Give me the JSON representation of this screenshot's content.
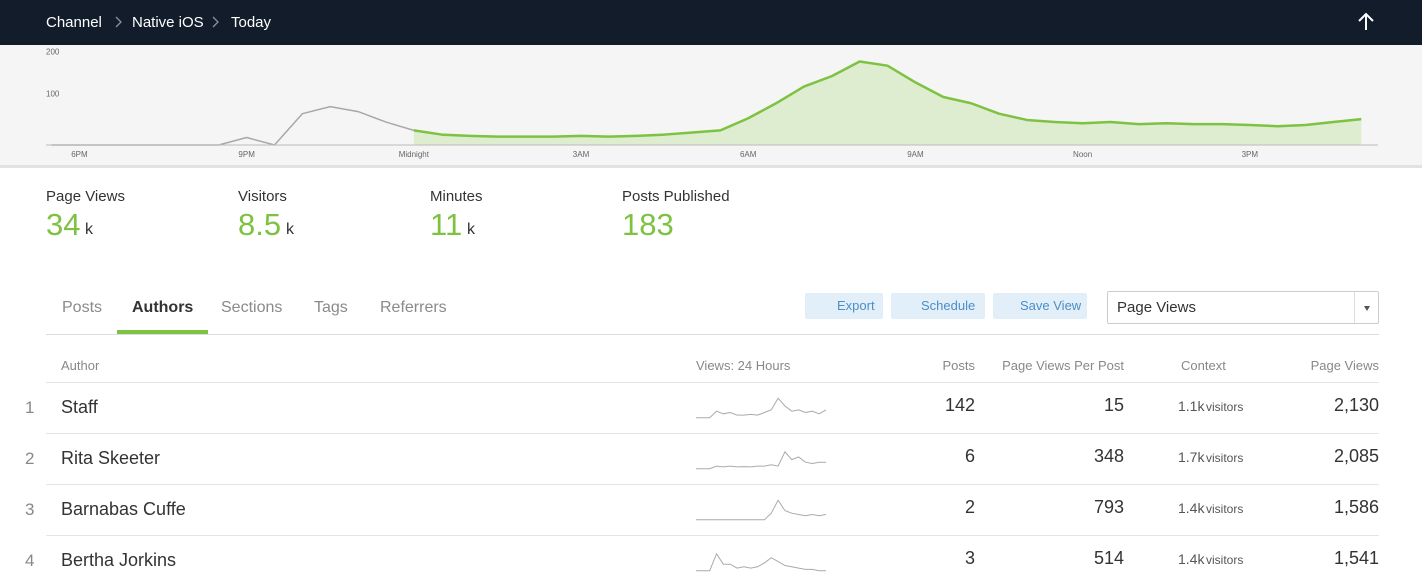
{
  "breadcrumb": [
    "Channel",
    "Native iOS",
    "Today"
  ],
  "chart": {
    "type": "area",
    "x": [
      -0.5,
      0,
      0.5,
      1,
      1.5,
      2,
      2.5,
      3,
      3.5,
      4,
      4.5,
      5,
      5.5,
      6,
      6.5,
      7,
      7.5,
      8,
      8.5,
      9,
      9.5,
      10,
      10.5,
      11,
      11.5,
      12,
      12.5,
      13,
      13.5,
      14,
      14.5,
      15,
      15.5,
      16,
      16.5,
      17,
      17.5,
      18,
      18.5,
      19,
      19.5,
      20,
      20.5,
      21,
      21.5,
      22,
      22.5,
      23
    ],
    "xlim": [
      -0.6,
      23.3
    ],
    "ylim": [
      0,
      230
    ],
    "yticks": [
      100,
      200
    ],
    "xticks": [
      {
        "value": 0,
        "label": "6PM"
      },
      {
        "value": 3,
        "label": "9PM"
      },
      {
        "value": 6,
        "label": "Midnight"
      },
      {
        "value": 9,
        "label": "3AM"
      },
      {
        "value": 12,
        "label": "6AM"
      },
      {
        "value": 15,
        "label": "9AM"
      },
      {
        "value": 18,
        "label": "Noon"
      },
      {
        "value": 21,
        "label": "3PM"
      }
    ],
    "series": [
      {
        "color": "#a8a8a8",
        "values": [
          0,
          0,
          0,
          0,
          0,
          0,
          0,
          18,
          0,
          75,
          92,
          80,
          55,
          35,
          null,
          null,
          null,
          null,
          null,
          null,
          null,
          null,
          null,
          null,
          null,
          null,
          null,
          null,
          null,
          null,
          null,
          null,
          null,
          null,
          null,
          null,
          null,
          null,
          null,
          null,
          null,
          null,
          null,
          null,
          null,
          null,
          null,
          null
        ]
      },
      {
        "color": "#7dc241",
        "fill": "#deecd0",
        "values": [
          null,
          null,
          null,
          null,
          null,
          null,
          null,
          null,
          null,
          null,
          null,
          null,
          null,
          35,
          25,
          22,
          20,
          20,
          20,
          22,
          20,
          22,
          25,
          30,
          35,
          64,
          100,
          140,
          165,
          200,
          190,
          150,
          115,
          100,
          75,
          60,
          55,
          52,
          55,
          50,
          52,
          50,
          50,
          48,
          45,
          48,
          55,
          62
        ]
      }
    ]
  },
  "stats": [
    {
      "label": "Page Views",
      "value": 34,
      "unit": "k"
    },
    {
      "label": "Visitors",
      "value": 8.5,
      "unit": "k"
    },
    {
      "label": "Minutes",
      "value": 11,
      "unit": "k"
    },
    {
      "label": "Posts Published",
      "value": 183
    }
  ],
  "tabs": {
    "items": [
      "Posts",
      "Authors",
      "Sections",
      "Tags",
      "Referrers"
    ],
    "active": 1
  },
  "buttons": [
    "Export",
    "Schedule",
    "Save View"
  ],
  "metric_select": "Page Views",
  "table": {
    "columns": [
      "Author",
      "Views: 24 Hours",
      "Posts",
      "Page Views Per Post",
      "Context",
      "Page Views"
    ],
    "sparkline_ylim": [
      0,
      100
    ],
    "rows": [
      {
        "rank": 1,
        "author": "Staff",
        "sparkline": [
          5,
          5,
          5,
          30,
          20,
          25,
          15,
          15,
          18,
          15,
          25,
          35,
          80,
          50,
          30,
          35,
          25,
          30,
          20,
          35
        ],
        "posts": 142,
        "page_views_per_post": 15,
        "context": "1.1k",
        "context_unit": "visitors",
        "page_views": "2,130"
      },
      {
        "rank": 2,
        "author": "Rita Skeeter",
        "sparkline": [
          5,
          5,
          5,
          15,
          12,
          15,
          12,
          13,
          12,
          15,
          15,
          20,
          15,
          70,
          40,
          50,
          30,
          25,
          30,
          30
        ],
        "posts": 6,
        "page_views_per_post": 348,
        "context": "1.7k",
        "context_unit": "visitors",
        "page_views": "2,085"
      },
      {
        "rank": 3,
        "author": "Barnabas Cuffe",
        "sparkline": [
          5,
          5,
          5,
          5,
          5,
          5,
          5,
          5,
          5,
          5,
          5,
          30,
          80,
          40,
          30,
          25,
          20,
          25,
          20,
          25
        ],
        "posts": 2,
        "page_views_per_post": 793,
        "context": "1.4k",
        "context_unit": "visitors",
        "page_views": "1,586"
      },
      {
        "rank": 4,
        "author": "Bertha Jorkins",
        "sparkline": [
          5,
          5,
          5,
          70,
          30,
          30,
          15,
          20,
          15,
          20,
          35,
          55,
          40,
          25,
          20,
          15,
          10,
          10,
          5,
          5
        ],
        "posts": 3,
        "page_views_per_post": 514,
        "context": "1.4k",
        "context_unit": "visitors",
        "page_views": "1,541"
      }
    ]
  }
}
